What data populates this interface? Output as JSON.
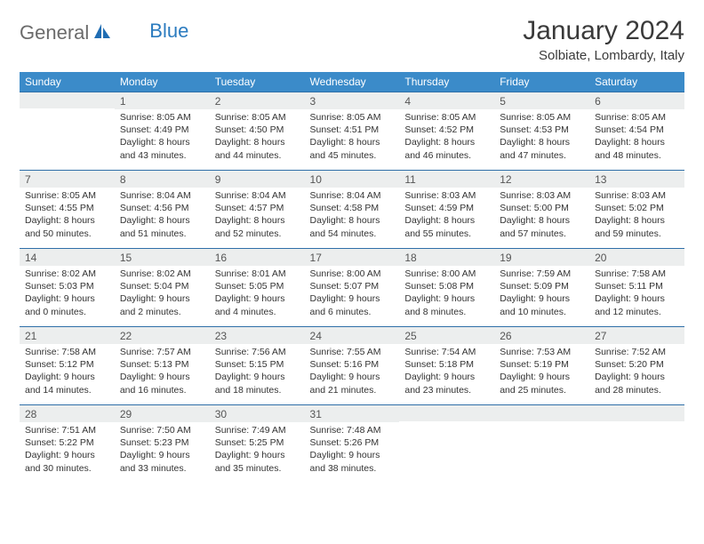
{
  "logo": {
    "general": "General",
    "blue": "Blue"
  },
  "header": {
    "title": "January 2024",
    "location": "Solbiate, Lombardy, Italy"
  },
  "colors": {
    "header_bg": "#3b8bc9",
    "header_text": "#ffffff",
    "daynum_bg": "#eceeee",
    "border": "#2f6fa8",
    "logo_gray": "#6b6b6b",
    "logo_blue": "#2b7bbf"
  },
  "day_names": [
    "Sunday",
    "Monday",
    "Tuesday",
    "Wednesday",
    "Thursday",
    "Friday",
    "Saturday"
  ],
  "weeks": [
    [
      {
        "num": "",
        "line1": "",
        "line2": "",
        "line3": "",
        "line4": ""
      },
      {
        "num": "1",
        "line1": "Sunrise: 8:05 AM",
        "line2": "Sunset: 4:49 PM",
        "line3": "Daylight: 8 hours",
        "line4": "and 43 minutes."
      },
      {
        "num": "2",
        "line1": "Sunrise: 8:05 AM",
        "line2": "Sunset: 4:50 PM",
        "line3": "Daylight: 8 hours",
        "line4": "and 44 minutes."
      },
      {
        "num": "3",
        "line1": "Sunrise: 8:05 AM",
        "line2": "Sunset: 4:51 PM",
        "line3": "Daylight: 8 hours",
        "line4": "and 45 minutes."
      },
      {
        "num": "4",
        "line1": "Sunrise: 8:05 AM",
        "line2": "Sunset: 4:52 PM",
        "line3": "Daylight: 8 hours",
        "line4": "and 46 minutes."
      },
      {
        "num": "5",
        "line1": "Sunrise: 8:05 AM",
        "line2": "Sunset: 4:53 PM",
        "line3": "Daylight: 8 hours",
        "line4": "and 47 minutes."
      },
      {
        "num": "6",
        "line1": "Sunrise: 8:05 AM",
        "line2": "Sunset: 4:54 PM",
        "line3": "Daylight: 8 hours",
        "line4": "and 48 minutes."
      }
    ],
    [
      {
        "num": "7",
        "line1": "Sunrise: 8:05 AM",
        "line2": "Sunset: 4:55 PM",
        "line3": "Daylight: 8 hours",
        "line4": "and 50 minutes."
      },
      {
        "num": "8",
        "line1": "Sunrise: 8:04 AM",
        "line2": "Sunset: 4:56 PM",
        "line3": "Daylight: 8 hours",
        "line4": "and 51 minutes."
      },
      {
        "num": "9",
        "line1": "Sunrise: 8:04 AM",
        "line2": "Sunset: 4:57 PM",
        "line3": "Daylight: 8 hours",
        "line4": "and 52 minutes."
      },
      {
        "num": "10",
        "line1": "Sunrise: 8:04 AM",
        "line2": "Sunset: 4:58 PM",
        "line3": "Daylight: 8 hours",
        "line4": "and 54 minutes."
      },
      {
        "num": "11",
        "line1": "Sunrise: 8:03 AM",
        "line2": "Sunset: 4:59 PM",
        "line3": "Daylight: 8 hours",
        "line4": "and 55 minutes."
      },
      {
        "num": "12",
        "line1": "Sunrise: 8:03 AM",
        "line2": "Sunset: 5:00 PM",
        "line3": "Daylight: 8 hours",
        "line4": "and 57 minutes."
      },
      {
        "num": "13",
        "line1": "Sunrise: 8:03 AM",
        "line2": "Sunset: 5:02 PM",
        "line3": "Daylight: 8 hours",
        "line4": "and 59 minutes."
      }
    ],
    [
      {
        "num": "14",
        "line1": "Sunrise: 8:02 AM",
        "line2": "Sunset: 5:03 PM",
        "line3": "Daylight: 9 hours",
        "line4": "and 0 minutes."
      },
      {
        "num": "15",
        "line1": "Sunrise: 8:02 AM",
        "line2": "Sunset: 5:04 PM",
        "line3": "Daylight: 9 hours",
        "line4": "and 2 minutes."
      },
      {
        "num": "16",
        "line1": "Sunrise: 8:01 AM",
        "line2": "Sunset: 5:05 PM",
        "line3": "Daylight: 9 hours",
        "line4": "and 4 minutes."
      },
      {
        "num": "17",
        "line1": "Sunrise: 8:00 AM",
        "line2": "Sunset: 5:07 PM",
        "line3": "Daylight: 9 hours",
        "line4": "and 6 minutes."
      },
      {
        "num": "18",
        "line1": "Sunrise: 8:00 AM",
        "line2": "Sunset: 5:08 PM",
        "line3": "Daylight: 9 hours",
        "line4": "and 8 minutes."
      },
      {
        "num": "19",
        "line1": "Sunrise: 7:59 AM",
        "line2": "Sunset: 5:09 PM",
        "line3": "Daylight: 9 hours",
        "line4": "and 10 minutes."
      },
      {
        "num": "20",
        "line1": "Sunrise: 7:58 AM",
        "line2": "Sunset: 5:11 PM",
        "line3": "Daylight: 9 hours",
        "line4": "and 12 minutes."
      }
    ],
    [
      {
        "num": "21",
        "line1": "Sunrise: 7:58 AM",
        "line2": "Sunset: 5:12 PM",
        "line3": "Daylight: 9 hours",
        "line4": "and 14 minutes."
      },
      {
        "num": "22",
        "line1": "Sunrise: 7:57 AM",
        "line2": "Sunset: 5:13 PM",
        "line3": "Daylight: 9 hours",
        "line4": "and 16 minutes."
      },
      {
        "num": "23",
        "line1": "Sunrise: 7:56 AM",
        "line2": "Sunset: 5:15 PM",
        "line3": "Daylight: 9 hours",
        "line4": "and 18 minutes."
      },
      {
        "num": "24",
        "line1": "Sunrise: 7:55 AM",
        "line2": "Sunset: 5:16 PM",
        "line3": "Daylight: 9 hours",
        "line4": "and 21 minutes."
      },
      {
        "num": "25",
        "line1": "Sunrise: 7:54 AM",
        "line2": "Sunset: 5:18 PM",
        "line3": "Daylight: 9 hours",
        "line4": "and 23 minutes."
      },
      {
        "num": "26",
        "line1": "Sunrise: 7:53 AM",
        "line2": "Sunset: 5:19 PM",
        "line3": "Daylight: 9 hours",
        "line4": "and 25 minutes."
      },
      {
        "num": "27",
        "line1": "Sunrise: 7:52 AM",
        "line2": "Sunset: 5:20 PM",
        "line3": "Daylight: 9 hours",
        "line4": "and 28 minutes."
      }
    ],
    [
      {
        "num": "28",
        "line1": "Sunrise: 7:51 AM",
        "line2": "Sunset: 5:22 PM",
        "line3": "Daylight: 9 hours",
        "line4": "and 30 minutes."
      },
      {
        "num": "29",
        "line1": "Sunrise: 7:50 AM",
        "line2": "Sunset: 5:23 PM",
        "line3": "Daylight: 9 hours",
        "line4": "and 33 minutes."
      },
      {
        "num": "30",
        "line1": "Sunrise: 7:49 AM",
        "line2": "Sunset: 5:25 PM",
        "line3": "Daylight: 9 hours",
        "line4": "and 35 minutes."
      },
      {
        "num": "31",
        "line1": "Sunrise: 7:48 AM",
        "line2": "Sunset: 5:26 PM",
        "line3": "Daylight: 9 hours",
        "line4": "and 38 minutes."
      },
      {
        "num": "",
        "line1": "",
        "line2": "",
        "line3": "",
        "line4": ""
      },
      {
        "num": "",
        "line1": "",
        "line2": "",
        "line3": "",
        "line4": ""
      },
      {
        "num": "",
        "line1": "",
        "line2": "",
        "line3": "",
        "line4": ""
      }
    ]
  ]
}
